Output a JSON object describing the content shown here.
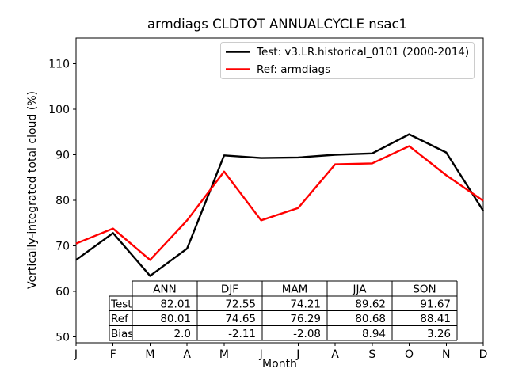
{
  "chart_data": {
    "type": "line",
    "title": "armdiags CLDTOT ANNUALCYCLE nsac1",
    "xlabel": "Month",
    "ylabel": "Vertically-integrated total cloud (%)",
    "x_tick_labels": [
      "J",
      "F",
      "M",
      "A",
      "M",
      "J",
      "J",
      "A",
      "S",
      "O",
      "N",
      "D"
    ],
    "y_ticks": [
      50,
      60,
      70,
      80,
      90,
      100,
      110
    ],
    "ylim": [
      48.5,
      115.5
    ],
    "grid": false,
    "legend_position": "upper right inside",
    "legend_border_color": "#cccccc",
    "background_color": "#ffffff",
    "spine_color": "#000000",
    "series": [
      {
        "name": "Test: v3.LR.historical_0101 (2000-2014)",
        "color": "#000000",
        "values": [
          66.9,
          72.8,
          63.4,
          69.4,
          89.85,
          89.3,
          89.4,
          90.0,
          90.3,
          94.5,
          90.5,
          77.7
        ]
      },
      {
        "name": "Ref: armdiags",
        "color": "#ff0000",
        "values": [
          70.5,
          73.8,
          66.9,
          75.6,
          86.3,
          75.6,
          78.3,
          87.9,
          88.1,
          91.9,
          85.5,
          79.9
        ]
      }
    ],
    "stats_table": {
      "col_headers": [
        "ANN",
        "DJF",
        "MAM",
        "JJA",
        "SON"
      ],
      "rows": [
        {
          "label": "Test",
          "values": [
            "82.01",
            "72.55",
            "74.21",
            "89.62",
            "91.67"
          ]
        },
        {
          "label": "Ref",
          "values": [
            "80.01",
            "74.65",
            "76.29",
            "80.68",
            "88.41"
          ]
        },
        {
          "label": "Bias",
          "values": [
            "2.0",
            "-2.11",
            "-2.08",
            "8.94",
            "3.26"
          ]
        }
      ]
    }
  }
}
